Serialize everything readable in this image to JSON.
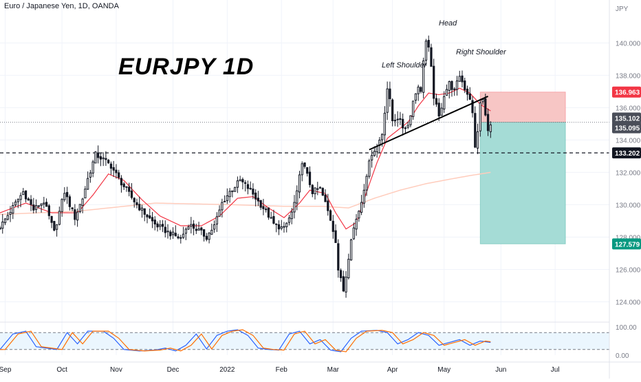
{
  "header": {
    "symbol_title": "Euro / Japanese Yen, 1D, OANDA",
    "big_title": "EURJPY 1D",
    "currency": "JPY"
  },
  "annotations": {
    "head": "Head",
    "left_shoulder": "Left Shoulder",
    "right_shoulder": "Right Shoulder"
  },
  "price_axis": {
    "ticks": [
      "140.000",
      "138.000",
      "136.000",
      "134.000",
      "132.000",
      "130.000",
      "128.000",
      "126.000",
      "124.000"
    ],
    "badges": [
      {
        "label": "136.963",
        "value": 136.963,
        "color": "#f23645"
      },
      {
        "label": "135.102",
        "value": 135.102,
        "color": "#4a4e59"
      },
      {
        "label": "135.095",
        "value": 135.095,
        "color": "#4a4e59"
      },
      {
        "label": "133.202",
        "value": 133.202,
        "color": "#131722"
      },
      {
        "label": "127.579",
        "value": 127.579,
        "color": "#089981"
      }
    ]
  },
  "stoch_axis": {
    "ticks": [
      "100.00",
      "0.00"
    ]
  },
  "time_axis": {
    "labels": [
      {
        "label": "Sep",
        "index": 2
      },
      {
        "label": "Oct",
        "index": 24
      },
      {
        "label": "Nov",
        "index": 45
      },
      {
        "label": "Dec",
        "index": 67
      },
      {
        "label": "2022",
        "index": 88
      },
      {
        "label": "Feb",
        "index": 109
      },
      {
        "label": "Mar",
        "index": 129
      },
      {
        "label": "Apr",
        "index": 152
      },
      {
        "label": "May",
        "index": 172
      },
      {
        "label": "Jun",
        "index": 194
      },
      {
        "label": "Jul",
        "index": 215
      }
    ]
  },
  "chart_data": {
    "type": "candlestick",
    "title": "EURJPY 1D",
    "subtitle": "Euro / Japanese Yen, 1D, OANDA",
    "ylim": [
      123.0,
      141.8
    ],
    "x_range": [
      0,
      236
    ],
    "stoch_range": [
      0,
      100
    ],
    "stoch_levels": [
      80,
      20
    ],
    "support_level": 133.202,
    "neckline": [
      {
        "index": 143,
        "price": 133.4
      },
      {
        "index": 189,
        "price": 136.7
      }
    ],
    "position": {
      "start_index": 186,
      "end_index": 219,
      "entry": 135.095,
      "stop": 136.963,
      "target": 127.579
    },
    "ohlc_anchors": [
      [
        0,
        128.6
      ],
      [
        4,
        129.6
      ],
      [
        9,
        130.8
      ],
      [
        13,
        129.7
      ],
      [
        17,
        130.2
      ],
      [
        21,
        128.3
      ],
      [
        25,
        130.8
      ],
      [
        29,
        129.2
      ],
      [
        32,
        130.4
      ],
      [
        34,
        131.6
      ],
      [
        37,
        133.1
      ],
      [
        40,
        132.8
      ],
      [
        43,
        132.4
      ],
      [
        46,
        131.6
      ],
      [
        49,
        130.9
      ],
      [
        53,
        130.0
      ],
      [
        57,
        129.3
      ],
      [
        60,
        128.8
      ],
      [
        65,
        128.3
      ],
      [
        70,
        127.9
      ],
      [
        73,
        128.8
      ],
      [
        77,
        128.4
      ],
      [
        80,
        128.0
      ],
      [
        83,
        128.7
      ],
      [
        86,
        130.1
      ],
      [
        89,
        130.8
      ],
      [
        93,
        131.5
      ],
      [
        97,
        130.9
      ],
      [
        100,
        130.2
      ],
      [
        103,
        129.6
      ],
      [
        106,
        128.8
      ],
      [
        110,
        128.5
      ],
      [
        113,
        129.5
      ],
      [
        115,
        130.7
      ],
      [
        117,
        132.7
      ],
      [
        119,
        131.8
      ],
      [
        121,
        130.8
      ],
      [
        124,
        131.0
      ],
      [
        126,
        130.1
      ],
      [
        128,
        129.1
      ],
      [
        130,
        127.8
      ],
      [
        131,
        126.0
      ],
      [
        133,
        124.7
      ],
      [
        134,
        125.6
      ],
      [
        136,
        128.0
      ],
      [
        138,
        129.1
      ],
      [
        140,
        130.2
      ],
      [
        142,
        131.9
      ],
      [
        144,
        133.2
      ],
      [
        146,
        133.6
      ],
      [
        148,
        134.4
      ],
      [
        150,
        137.2
      ],
      [
        151,
        136.4
      ],
      [
        152,
        135.2
      ],
      [
        154,
        135.4
      ],
      [
        156,
        134.8
      ],
      [
        158,
        134.9
      ],
      [
        160,
        136.4
      ],
      [
        162,
        137.4
      ],
      [
        163,
        136.9
      ],
      [
        164,
        139.0
      ],
      [
        165,
        140.1
      ],
      [
        166,
        139.6
      ],
      [
        167,
        138.4
      ],
      [
        168,
        136.7
      ],
      [
        170,
        135.4
      ],
      [
        172,
        136.8
      ],
      [
        174,
        137.5
      ],
      [
        176,
        137.0
      ],
      [
        178,
        138.0
      ],
      [
        180,
        137.2
      ],
      [
        182,
        136.6
      ],
      [
        183,
        135.6
      ],
      [
        184,
        133.5
      ],
      [
        185,
        134.6
      ],
      [
        186,
        136.2
      ],
      [
        187,
        136.5
      ],
      [
        188,
        135.5
      ],
      [
        189,
        134.5
      ],
      [
        190,
        135.1
      ]
    ],
    "ema_fast": [
      [
        0,
        129.5
      ],
      [
        10,
        130.1
      ],
      [
        20,
        129.5
      ],
      [
        30,
        129.5
      ],
      [
        36,
        130.6
      ],
      [
        42,
        131.9
      ],
      [
        48,
        131.5
      ],
      [
        55,
        130.3
      ],
      [
        62,
        129.3
      ],
      [
        70,
        128.7
      ],
      [
        78,
        128.7
      ],
      [
        85,
        129.3
      ],
      [
        92,
        130.4
      ],
      [
        98,
        130.5
      ],
      [
        104,
        129.8
      ],
      [
        110,
        129.2
      ],
      [
        116,
        130.1
      ],
      [
        120,
        130.9
      ],
      [
        126,
        130.7
      ],
      [
        130,
        129.5
      ],
      [
        134,
        128.5
      ],
      [
        138,
        128.9
      ],
      [
        142,
        130.8
      ],
      [
        146,
        132.6
      ],
      [
        150,
        134.1
      ],
      [
        154,
        134.6
      ],
      [
        158,
        135.1
      ],
      [
        162,
        136.1
      ],
      [
        166,
        136.9
      ],
      [
        170,
        136.8
      ],
      [
        174,
        136.9
      ],
      [
        178,
        137.2
      ],
      [
        182,
        136.9
      ],
      [
        186,
        136.2
      ],
      [
        190,
        135.8
      ]
    ],
    "sma_slow": [
      [
        0,
        129.4
      ],
      [
        30,
        129.6
      ],
      [
        60,
        130.1
      ],
      [
        90,
        130.0
      ],
      [
        110,
        129.9
      ],
      [
        125,
        129.9
      ],
      [
        135,
        129.8
      ],
      [
        145,
        130.4
      ],
      [
        155,
        130.9
      ],
      [
        165,
        131.3
      ],
      [
        175,
        131.6
      ],
      [
        182,
        131.8
      ],
      [
        190,
        132.0
      ]
    ],
    "stoch_k_anchors": [
      [
        0,
        20
      ],
      [
        5,
        75
      ],
      [
        10,
        85
      ],
      [
        14,
        30
      ],
      [
        18,
        25
      ],
      [
        22,
        20
      ],
      [
        26,
        80
      ],
      [
        30,
        40
      ],
      [
        34,
        85
      ],
      [
        40,
        85
      ],
      [
        44,
        60
      ],
      [
        48,
        20
      ],
      [
        54,
        15
      ],
      [
        60,
        18
      ],
      [
        64,
        25
      ],
      [
        68,
        15
      ],
      [
        72,
        35
      ],
      [
        76,
        75
      ],
      [
        80,
        22
      ],
      [
        84,
        70
      ],
      [
        88,
        85
      ],
      [
        92,
        90
      ],
      [
        96,
        70
      ],
      [
        100,
        25
      ],
      [
        104,
        20
      ],
      [
        108,
        18
      ],
      [
        112,
        75
      ],
      [
        116,
        85
      ],
      [
        120,
        40
      ],
      [
        124,
        55
      ],
      [
        128,
        18
      ],
      [
        132,
        12
      ],
      [
        136,
        60
      ],
      [
        140,
        85
      ],
      [
        146,
        88
      ],
      [
        150,
        80
      ],
      [
        154,
        40
      ],
      [
        158,
        55
      ],
      [
        162,
        80
      ],
      [
        166,
        70
      ],
      [
        170,
        35
      ],
      [
        174,
        45
      ],
      [
        178,
        55
      ],
      [
        182,
        35
      ],
      [
        186,
        50
      ],
      [
        190,
        45
      ]
    ]
  }
}
